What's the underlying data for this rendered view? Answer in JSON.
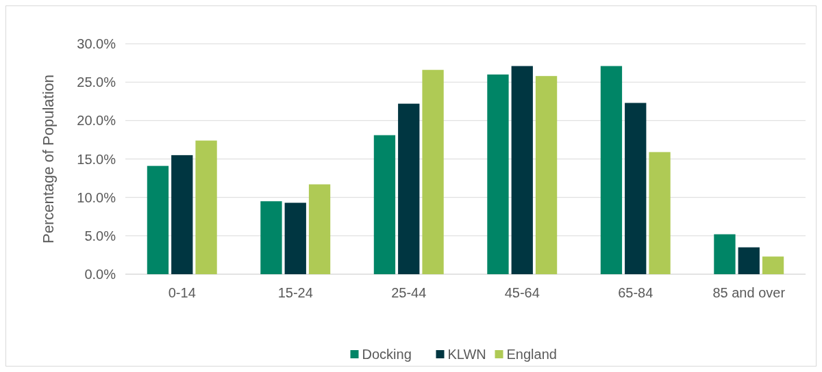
{
  "chart_data": {
    "type": "bar",
    "ylabel": "Percentage of Population",
    "categories": [
      "0-14",
      "15-24",
      "25-44",
      "45-64",
      "65-84",
      "85 and over"
    ],
    "series": [
      {
        "name": "Docking",
        "color": "#008566",
        "values": [
          14.1,
          9.5,
          18.1,
          26.0,
          27.1,
          5.2
        ]
      },
      {
        "name": "KLWN",
        "color": "#003641",
        "values": [
          15.5,
          9.3,
          22.2,
          27.1,
          22.3,
          3.5
        ]
      },
      {
        "name": "England",
        "color": "#afca55",
        "values": [
          17.4,
          11.7,
          26.6,
          25.8,
          15.9,
          2.3
        ]
      }
    ],
    "ylim": [
      0,
      30
    ],
    "yticks": [
      {
        "value": 0,
        "label": "0.0%"
      },
      {
        "value": 5,
        "label": "5.0%"
      },
      {
        "value": 10,
        "label": "10.0%"
      },
      {
        "value": 15,
        "label": "15.0%"
      },
      {
        "value": 20,
        "label": "20.0%"
      },
      {
        "value": 25,
        "label": "25.0%"
      },
      {
        "value": 30,
        "label": "30.0%"
      }
    ],
    "grid": "y",
    "legend": "bottom"
  }
}
